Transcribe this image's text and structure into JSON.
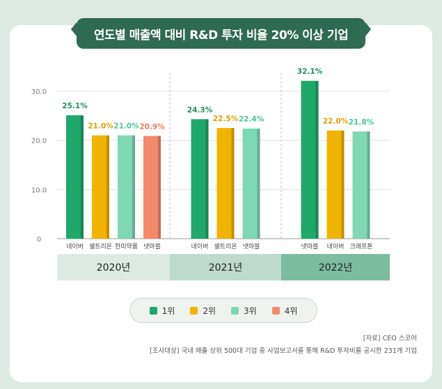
{
  "title": "연도별 매출액 대비 R&D 투자 비율 20% 이상 기업",
  "chart_data": {
    "type": "bar",
    "y_ticks": [
      "30.0",
      "20.0",
      "10.0",
      "0"
    ],
    "ylim": [
      0,
      30
    ],
    "groups": [
      {
        "year": "2020년",
        "bars": [
          {
            "company": "네이버",
            "value": 25.1,
            "label": "25.1%",
            "rank": 1
          },
          {
            "company": "셀트리온",
            "value": 21.0,
            "label": "21.0%",
            "rank": 2
          },
          {
            "company": "한미약품",
            "value": 21.0,
            "label": "21.0%",
            "rank": 3
          },
          {
            "company": "넷마블",
            "value": 20.9,
            "label": "20.9%",
            "rank": 4
          }
        ]
      },
      {
        "year": "2021년",
        "bars": [
          {
            "company": "네이버",
            "value": 24.3,
            "label": "24.3%",
            "rank": 1
          },
          {
            "company": "셀트리온",
            "value": 22.5,
            "label": "22.5%",
            "rank": 2
          },
          {
            "company": "넷마블",
            "value": 22.4,
            "label": "22.4%",
            "rank": 3
          }
        ]
      },
      {
        "year": "2022년",
        "bars": [
          {
            "company": "넷마블",
            "value": 32.1,
            "label": "32.1%",
            "rank": 1
          },
          {
            "company": "네이버",
            "value": 22.0,
            "label": "22.0%",
            "rank": 2
          },
          {
            "company": "크래프톤",
            "value": 21.8,
            "label": "21.8%",
            "rank": 3
          }
        ]
      }
    ],
    "legend": [
      {
        "rank": 1,
        "label": "1위"
      },
      {
        "rank": 2,
        "label": "2위"
      },
      {
        "rank": 3,
        "label": "3위"
      },
      {
        "rank": 4,
        "label": "4위"
      }
    ],
    "rank_colors": {
      "1": "#1ea86a",
      "2": "#f0b400",
      "3": "#7ed8b4",
      "4": "#f58a6b"
    },
    "rank_label_colors": {
      "1": "#1e8f5a",
      "2": "#e0a100",
      "3": "#4cc497",
      "4": "#ee7a5a"
    },
    "year_band_colors": [
      "#dde9e3",
      "#bcdacd",
      "#7cbca1"
    ]
  },
  "source": "[자료] CEO 스코어",
  "survey": "[조사대상] 국내 매출 상위 500대 기업 중 사업보고서를 통해 R&D 투자비를 공시한 231개 기업"
}
